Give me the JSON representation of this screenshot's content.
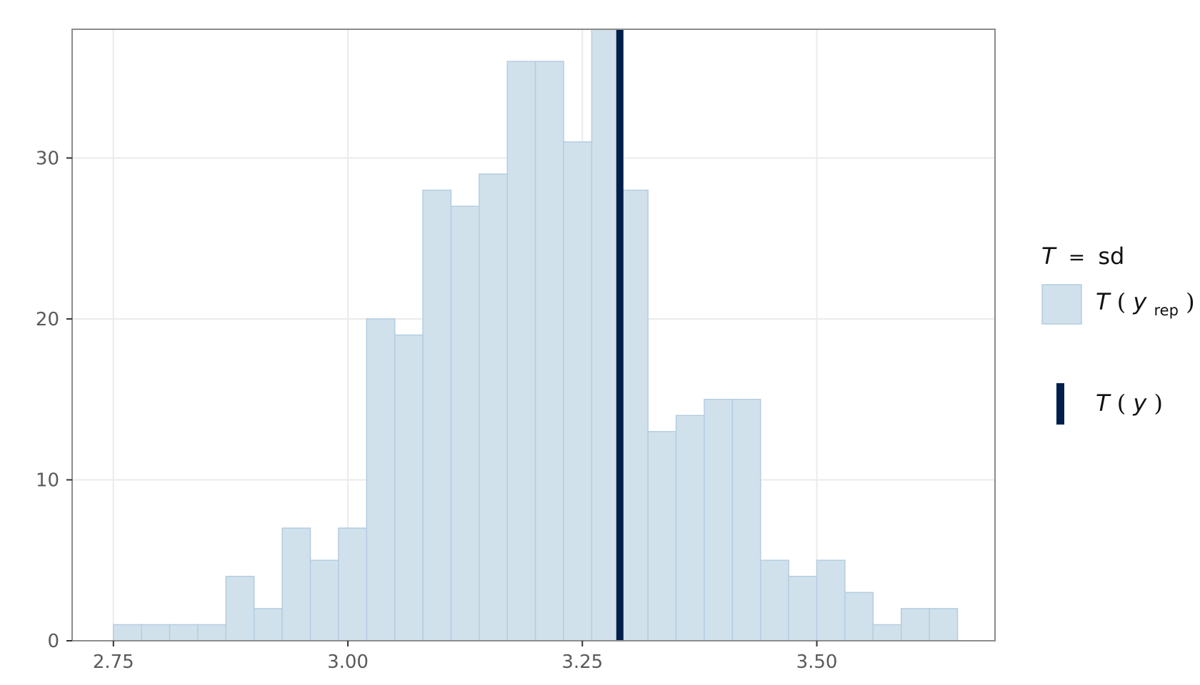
{
  "chart_data": {
    "type": "bar",
    "subtype": "histogram",
    "bin_width": 0.03,
    "bin_start": 2.75,
    "counts": [
      1,
      1,
      1,
      1,
      4,
      2,
      7,
      5,
      7,
      20,
      19,
      28,
      27,
      29,
      36,
      36,
      31,
      38,
      28,
      13,
      14,
      15,
      15,
      5,
      4,
      5,
      3,
      1,
      2,
      2
    ],
    "observed_value": 3.29,
    "xlim": [
      2.706,
      3.69
    ],
    "ylim": [
      0,
      38
    ],
    "x_ticks": [
      2.75,
      3.0,
      3.25,
      3.5
    ],
    "x_tick_labels": [
      "2.75",
      "3.00",
      "3.25",
      "3.50"
    ],
    "y_ticks": [
      0,
      10,
      20,
      30
    ],
    "y_tick_labels": [
      "0",
      "10",
      "20",
      "30"
    ],
    "grid": true,
    "legend_position": "right",
    "legend": {
      "title_T": "T",
      "title_eq": "=",
      "title_stat": "sd",
      "yrep_T": "T",
      "yrep_y": "y",
      "yrep_sub": "rep",
      "obs_T": "T",
      "obs_y": "y"
    }
  },
  "colors": {
    "bar_fill": "#d1e1ec",
    "bar_stroke": "#b3cde0",
    "observed_line": "#011f4b",
    "grid": "#ebebeb",
    "panel_border": "#8c8c8c",
    "tick_text": "#5a5a5a"
  }
}
